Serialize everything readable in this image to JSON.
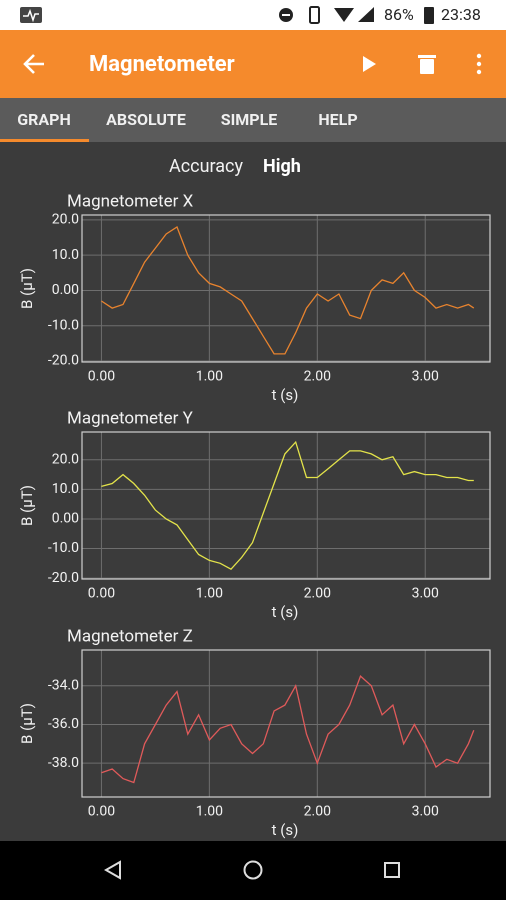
{
  "status_bar": {
    "battery": "86%",
    "time": "23:38"
  },
  "app_bar": {
    "title": "Magnetometer"
  },
  "tabs": [
    "GRAPH",
    "ABSOLUTE",
    "SIMPLE",
    "HELP"
  ],
  "accuracy": {
    "label": "Accuracy",
    "value": "High"
  },
  "chart_data": [
    {
      "type": "line",
      "title": "Magnetometer X",
      "x_label": "t (s)",
      "y_label": "B (µT)",
      "x": [
        0,
        0.1,
        0.2,
        0.3,
        0.4,
        0.5,
        0.6,
        0.7,
        0.8,
        0.9,
        1.0,
        1.1,
        1.2,
        1.3,
        1.4,
        1.5,
        1.6,
        1.7,
        1.8,
        1.9,
        2.0,
        2.1,
        2.2,
        2.3,
        2.4,
        2.5,
        2.6,
        2.7,
        2.8,
        2.9,
        3.0,
        3.1,
        3.2,
        3.3,
        3.4,
        3.45
      ],
      "series": [
        {
          "color": "#e8832e",
          "values": [
            -3,
            -5,
            -4,
            2,
            8,
            12,
            16,
            18,
            10,
            5,
            2,
            1,
            -1,
            -3,
            -8,
            -13,
            -18,
            -18,
            -12,
            -5,
            -1,
            -3,
            -1,
            -7,
            -8,
            0,
            3,
            2,
            5,
            0,
            -2,
            -5,
            -4,
            -5,
            -4,
            -5
          ]
        }
      ],
      "xlim": [
        -0.18,
        3.6
      ],
      "ylim": [
        -20.3,
        21.4
      ],
      "xticks": [
        {
          "value": 0,
          "label": "0.00"
        },
        {
          "value": 1,
          "label": "1.00"
        },
        {
          "value": 2,
          "label": "2.00"
        },
        {
          "value": 3,
          "label": "3.00"
        }
      ],
      "yticks": [
        {
          "value": -20,
          "label": "-20.0"
        },
        {
          "value": -10,
          "label": "-10.0"
        },
        {
          "value": 0,
          "label": "0.00"
        },
        {
          "value": 10,
          "label": "10.0"
        },
        {
          "value": 20,
          "label": "20.0"
        }
      ],
      "grid": true
    },
    {
      "type": "line",
      "title": "Magnetometer Y",
      "x_label": "t (s)",
      "y_label": "B (µT)",
      "x": [
        0,
        0.1,
        0.2,
        0.3,
        0.4,
        0.5,
        0.6,
        0.7,
        0.8,
        0.9,
        1.0,
        1.1,
        1.2,
        1.3,
        1.4,
        1.5,
        1.6,
        1.7,
        1.8,
        1.9,
        2.0,
        2.1,
        2.2,
        2.3,
        2.4,
        2.5,
        2.6,
        2.7,
        2.8,
        2.9,
        3.0,
        3.1,
        3.2,
        3.3,
        3.4,
        3.45
      ],
      "series": [
        {
          "color": "#e3e34a",
          "values": [
            11,
            12,
            15,
            12,
            8,
            3,
            0,
            -2,
            -7,
            -12,
            -14,
            -15,
            -17,
            -13,
            -8,
            2,
            12,
            22,
            26,
            14,
            14,
            17,
            20,
            23,
            23,
            22,
            20,
            21,
            15,
            16,
            15,
            15,
            14,
            14,
            13,
            13
          ]
        }
      ],
      "xlim": [
        -0.18,
        3.6
      ],
      "ylim": [
        -20.3,
        29.4
      ],
      "xticks": [
        {
          "value": 0,
          "label": "0.00"
        },
        {
          "value": 1,
          "label": "1.00"
        },
        {
          "value": 2,
          "label": "2.00"
        },
        {
          "value": 3,
          "label": "3.00"
        }
      ],
      "yticks": [
        {
          "value": -20,
          "label": "-20.0"
        },
        {
          "value": -10,
          "label": "-10.0"
        },
        {
          "value": 0,
          "label": "0.00"
        },
        {
          "value": 10,
          "label": "10.0"
        },
        {
          "value": 20,
          "label": "20.0"
        }
      ],
      "grid": true
    },
    {
      "type": "line",
      "title": "Magnetometer Z",
      "x_label": "t (s)",
      "y_label": "B (µT)",
      "x": [
        0,
        0.1,
        0.2,
        0.3,
        0.4,
        0.5,
        0.6,
        0.7,
        0.8,
        0.9,
        1.0,
        1.1,
        1.2,
        1.3,
        1.4,
        1.5,
        1.6,
        1.7,
        1.8,
        1.9,
        2.0,
        2.1,
        2.2,
        2.3,
        2.4,
        2.5,
        2.6,
        2.7,
        2.8,
        2.9,
        3.0,
        3.1,
        3.2,
        3.3,
        3.4,
        3.45
      ],
      "series": [
        {
          "color": "#e05a5a",
          "values": [
            -38.5,
            -38.3,
            -38.8,
            -39,
            -37,
            -36,
            -35,
            -34.3,
            -36.5,
            -35.5,
            -36.8,
            -36.2,
            -36,
            -37,
            -37.5,
            -37,
            -35.3,
            -35,
            -34,
            -36.5,
            -38,
            -36.5,
            -36,
            -35,
            -33.5,
            -34,
            -35.5,
            -35,
            -37,
            -36,
            -37,
            -38.2,
            -37.8,
            -38,
            -37,
            -36.3
          ]
        }
      ],
      "xlim": [
        -0.18,
        3.6
      ],
      "ylim": [
        -39.75,
        -32.15
      ],
      "xticks": [
        {
          "value": 0,
          "label": "0.00"
        },
        {
          "value": 1,
          "label": "1.00"
        },
        {
          "value": 2,
          "label": "2.00"
        },
        {
          "value": 3,
          "label": "3.00"
        }
      ],
      "yticks": [
        {
          "value": -38,
          "label": "-38.0"
        },
        {
          "value": -36,
          "label": "-36.0"
        },
        {
          "value": -34,
          "label": "-34.0"
        }
      ],
      "grid": true
    }
  ]
}
